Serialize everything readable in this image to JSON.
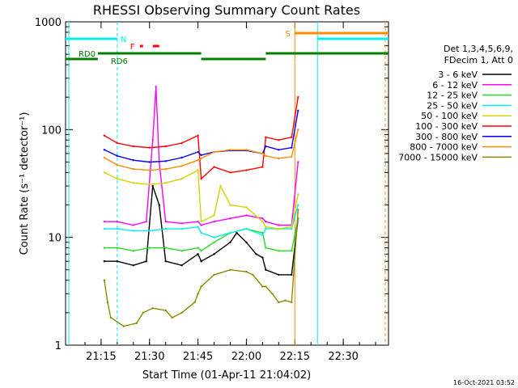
{
  "chart_data": {
    "type": "line",
    "title": "RHESSI Observing Summary Count Rates",
    "xlabel": "Start Time (01-Apr-11 21:04:02)",
    "ylabel": "Count Rate (s⁻¹ detector⁻¹)",
    "y_scale": "log",
    "ylim": [
      1,
      1000
    ],
    "xlim": [
      "21:04",
      "22:44"
    ],
    "x_ticks": [
      "21:15",
      "21:30",
      "21:45",
      "22:00",
      "22:15",
      "22:30"
    ],
    "y_ticks": [
      "1",
      "10",
      "100",
      "1000"
    ],
    "legend_position": "right",
    "legend_header": [
      "Det 1,3,4,5,6,9,",
      "FDecim 1, Att 0"
    ],
    "series": [
      {
        "name": "3 - 6 keV",
        "color": "#000000",
        "x": [
          "21:16",
          "21:20",
          "21:25",
          "21:29",
          "21:31",
          "21:33",
          "21:35",
          "21:40",
          "21:45",
          "21:46",
          "21:50",
          "21:55",
          "21:57",
          "22:00",
          "22:03",
          "22:05",
          "22:06",
          "22:10",
          "22:14",
          "22:16"
        ],
        "y": [
          6,
          6,
          5.5,
          6,
          30,
          20,
          6,
          5.5,
          7,
          6,
          7,
          9,
          11,
          9,
          7,
          6.5,
          5,
          4.5,
          4.5,
          15
        ]
      },
      {
        "name": "6 - 12 keV",
        "color": "#ff00ff",
        "x": [
          "21:16",
          "21:20",
          "21:25",
          "21:29",
          "21:31",
          "21:32",
          "21:33",
          "21:35",
          "21:40",
          "21:45",
          "21:46",
          "21:50",
          "21:55",
          "22:00",
          "22:05",
          "22:06",
          "22:10",
          "22:14",
          "22:16"
        ],
        "y": [
          14,
          14,
          13,
          14,
          80,
          250,
          50,
          14,
          13.5,
          14,
          13,
          14,
          15,
          16,
          15,
          14,
          13,
          13,
          50
        ]
      },
      {
        "name": "12 - 25 keV",
        "color": "#22dd22",
        "x": [
          "21:16",
          "21:20",
          "21:25",
          "21:30",
          "21:35",
          "21:40",
          "21:45",
          "21:46",
          "21:50",
          "21:55",
          "22:00",
          "22:05",
          "22:06",
          "22:10",
          "22:14",
          "22:16"
        ],
        "y": [
          8,
          8,
          7.5,
          8,
          8,
          7.5,
          8,
          7.5,
          9,
          11,
          12,
          11,
          8,
          7.5,
          7.5,
          15
        ]
      },
      {
        "name": "25 - 50 keV",
        "color": "#00eeee",
        "x": [
          "21:16",
          "21:20",
          "21:25",
          "21:30",
          "21:35",
          "21:40",
          "21:45",
          "21:46",
          "21:50",
          "21:55",
          "22:00",
          "22:05",
          "22:06",
          "22:10",
          "22:14",
          "22:16"
        ],
        "y": [
          12,
          12,
          11.5,
          11.5,
          12,
          12,
          12.5,
          11,
          10,
          11,
          12,
          10.5,
          12,
          12,
          12,
          20
        ]
      },
      {
        "name": "50 - 100 keV",
        "color": "#d4d400",
        "x": [
          "21:16",
          "21:20",
          "21:25",
          "21:30",
          "21:35",
          "21:40",
          "21:45",
          "21:46",
          "21:50",
          "21:52",
          "21:55",
          "22:00",
          "22:05",
          "22:06",
          "22:10",
          "22:14",
          "22:16"
        ],
        "y": [
          40,
          35,
          32,
          31,
          32,
          35,
          42,
          14,
          16,
          30,
          20,
          19,
          14,
          12.5,
          12,
          12.5,
          25
        ]
      },
      {
        "name": "100 - 300 keV",
        "color": "#ff0000",
        "x": [
          "21:16",
          "21:20",
          "21:25",
          "21:30",
          "21:35",
          "21:40",
          "21:45",
          "21:46",
          "21:50",
          "21:55",
          "22:00",
          "22:05",
          "22:06",
          "22:10",
          "22:14",
          "22:16"
        ],
        "y": [
          88,
          75,
          70,
          68,
          70,
          75,
          88,
          35,
          45,
          40,
          42,
          45,
          85,
          80,
          85,
          200
        ]
      },
      {
        "name": "300 - 800 keV",
        "color": "#0000ff",
        "x": [
          "21:16",
          "21:20",
          "21:25",
          "21:30",
          "21:35",
          "21:40",
          "21:45",
          "21:46",
          "21:50",
          "21:55",
          "22:00",
          "22:05",
          "22:06",
          "22:10",
          "22:14",
          "22:16"
        ],
        "y": [
          65,
          57,
          52,
          50,
          51,
          55,
          62,
          58,
          62,
          64,
          64,
          60,
          70,
          65,
          68,
          150
        ]
      },
      {
        "name": "800 - 7000 keV",
        "color": "#ff8c00",
        "x": [
          "21:16",
          "21:20",
          "21:25",
          "21:30",
          "21:35",
          "21:40",
          "21:45",
          "21:46",
          "21:50",
          "21:55",
          "22:00",
          "22:05",
          "22:06",
          "22:10",
          "22:14",
          "22:16"
        ],
        "y": [
          55,
          47,
          43,
          42,
          43,
          46,
          52,
          54,
          62,
          65,
          65,
          60,
          57,
          54,
          56,
          100
        ]
      },
      {
        "name": "7000 - 15000 keV",
        "color": "#8b8b00",
        "x": [
          "21:16",
          "21:17",
          "21:18",
          "21:22",
          "21:26",
          "21:28",
          "21:31",
          "21:35",
          "21:37",
          "21:40",
          "21:44",
          "21:45",
          "21:46",
          "21:50",
          "21:55",
          "22:00",
          "22:02",
          "22:05",
          "22:06",
          "22:08",
          "22:10",
          "22:12",
          "22:14",
          "22:16"
        ],
        "y": [
          4,
          2.5,
          1.8,
          1.5,
          1.6,
          2,
          2.2,
          2.1,
          1.8,
          2,
          2.5,
          3,
          3.5,
          4.5,
          5,
          4.8,
          4.5,
          3.5,
          3.5,
          3,
          2.5,
          2.6,
          2.5,
          18
        ]
      }
    ],
    "annotations": {
      "flag_labels": {
        "N": "N",
        "F": "F",
        "S": "S",
        "RD0": "RD0",
        "RD6": "RD6"
      }
    },
    "timestamp": "16-Oct-2021 03:52"
  }
}
